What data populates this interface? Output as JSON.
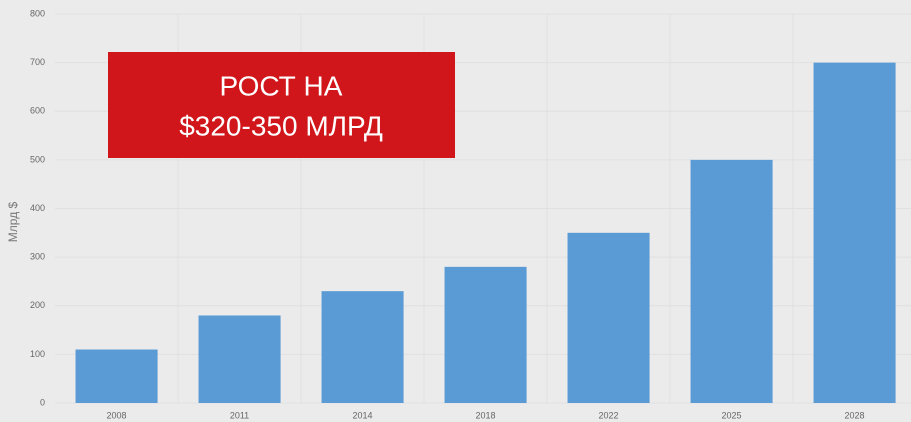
{
  "chart_data": {
    "type": "bar",
    "categories": [
      "2008",
      "2011",
      "2014",
      "2018",
      "2022",
      "2025",
      "2028"
    ],
    "values": [
      110,
      180,
      230,
      280,
      350,
      500,
      700
    ],
    "color": "#5b9bd5",
    "ylim": [
      0,
      800
    ],
    "yticks": [
      0,
      100,
      200,
      300,
      400,
      500,
      600,
      700,
      800
    ],
    "ylabel": "Млрд $",
    "grid": true,
    "annotation": [
      "РОСТ НА",
      "$320-350 МЛРД"
    ],
    "annotation_color": "#d0161b"
  }
}
